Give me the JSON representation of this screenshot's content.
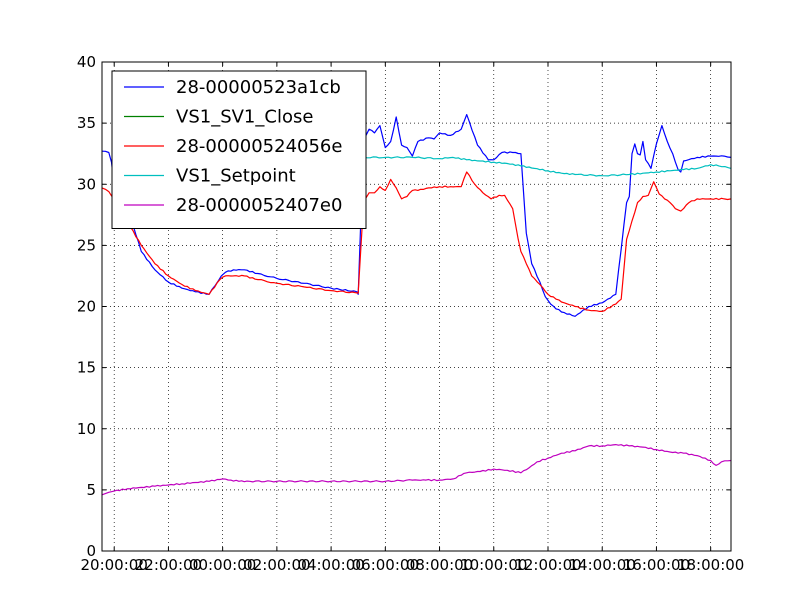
{
  "chart_data": {
    "type": "line",
    "title": "",
    "xlabel": "",
    "ylabel": "",
    "ylim": [
      0,
      40
    ],
    "y_ticks": [
      0,
      5,
      10,
      15,
      20,
      25,
      30,
      35,
      40
    ],
    "xlim": [
      19.55,
      42.75
    ],
    "x_ticks": [
      20,
      22,
      24,
      26,
      28,
      30,
      32,
      34,
      36,
      38,
      40,
      42
    ],
    "x_tick_labels": [
      "20:00:00",
      "22:00:00",
      "00:00:00",
      "02:00:00",
      "04:00:00",
      "06:00:00",
      "08:00:00",
      "10:00:00",
      "12:00:00",
      "14:00:00",
      "16:00:00",
      "18:00:00"
    ],
    "grid": true,
    "legend_position": "top-left",
    "series": [
      {
        "name": "28-00000523a1cb",
        "color": "#0000ff",
        "x": [
          19.55,
          19.8,
          19.9,
          20.0,
          20.5,
          21.0,
          21.5,
          22.0,
          22.5,
          23.0,
          23.5,
          23.95,
          24.1,
          24.4,
          24.8,
          25.3,
          26.0,
          27.0,
          28.0,
          28.95,
          29.0,
          29.2,
          29.4,
          29.6,
          29.8,
          30.0,
          30.2,
          30.4,
          30.6,
          30.8,
          31.0,
          31.2,
          31.6,
          31.8,
          32.0,
          32.4,
          32.8,
          33.0,
          33.4,
          33.8,
          34.0,
          34.3,
          34.7,
          35.0,
          35.2,
          35.4,
          35.7,
          35.9,
          36.0,
          36.1,
          36.3,
          36.6,
          37.0,
          37.5,
          38.0,
          38.5,
          38.9,
          39.0,
          39.1,
          39.2,
          39.3,
          39.4,
          39.5,
          39.6,
          39.8,
          40.0,
          40.2,
          40.4,
          40.6,
          40.8,
          40.9,
          41.0,
          41.5,
          42.0,
          42.5,
          42.75
        ],
        "values": [
          32.7,
          32.6,
          31.8,
          29.8,
          28.0,
          24.5,
          23.0,
          22.0,
          21.5,
          21.2,
          21.0,
          22.5,
          22.8,
          23.0,
          23.0,
          22.7,
          22.3,
          21.9,
          21.5,
          21.2,
          21.0,
          33.5,
          34.5,
          34.2,
          34.8,
          33.0,
          33.5,
          35.5,
          33.2,
          33.0,
          32.3,
          33.5,
          33.8,
          33.7,
          34.2,
          34.0,
          34.5,
          35.7,
          33.2,
          32.0,
          32.0,
          32.6,
          32.6,
          32.5,
          26.0,
          23.5,
          22.0,
          20.8,
          20.5,
          20.2,
          19.8,
          19.5,
          19.2,
          20.0,
          20.3,
          21.0,
          28.5,
          29.0,
          32.5,
          33.3,
          32.5,
          32.4,
          33.5,
          32.0,
          31.3,
          33.3,
          34.8,
          33.5,
          32.5,
          31.2,
          31.0,
          31.9,
          32.2,
          32.3,
          32.3,
          32.2
        ]
      },
      {
        "name": "VS1_SV1_Close",
        "color": "#008000",
        "x": [],
        "values": []
      },
      {
        "name": "28-00000524056e",
        "color": "#ff0000",
        "x": [
          19.55,
          19.8,
          20.0,
          20.3,
          20.6,
          21.0,
          21.5,
          22.0,
          22.5,
          23.0,
          23.5,
          23.9,
          24.1,
          24.4,
          24.8,
          25.3,
          26.0,
          27.0,
          28.0,
          29.0,
          29.2,
          29.4,
          29.6,
          29.8,
          30.0,
          30.2,
          30.4,
          30.6,
          30.8,
          31.0,
          31.2,
          31.6,
          32.0,
          32.4,
          32.8,
          33.0,
          33.3,
          33.6,
          33.9,
          34.2,
          34.4,
          34.7,
          34.9,
          35.0,
          35.2,
          35.4,
          35.7,
          36.0,
          36.3,
          36.6,
          37.0,
          37.5,
          38.0,
          38.5,
          38.7,
          38.9,
          39.1,
          39.3,
          39.5,
          39.7,
          39.9,
          40.1,
          40.3,
          40.5,
          40.7,
          40.9,
          41.2,
          41.5,
          42.0,
          42.5,
          42.75
        ],
        "values": [
          29.7,
          29.4,
          28.8,
          27.8,
          26.5,
          25.0,
          23.5,
          22.5,
          21.8,
          21.3,
          21.0,
          22.2,
          22.5,
          22.5,
          22.5,
          22.2,
          21.9,
          21.6,
          21.3,
          21.1,
          28.5,
          29.3,
          29.3,
          29.8,
          29.5,
          30.4,
          29.7,
          28.8,
          29.0,
          29.5,
          29.5,
          29.7,
          29.8,
          29.8,
          29.8,
          31.0,
          30.0,
          29.3,
          28.8,
          29.1,
          29.1,
          28.0,
          25.5,
          24.5,
          23.5,
          22.5,
          21.8,
          21.0,
          20.6,
          20.3,
          20.0,
          19.7,
          19.6,
          20.2,
          20.6,
          25.5,
          27.0,
          28.5,
          29.0,
          29.1,
          30.2,
          29.2,
          28.8,
          28.5,
          28.0,
          27.8,
          28.5,
          28.8,
          28.8,
          28.8,
          28.8
        ]
      },
      {
        "name": "VS1_Setpoint",
        "color": "#00bfbf",
        "x": [
          29.1,
          30.0,
          31.0,
          32.0,
          32.5,
          33.0,
          33.5,
          34.0,
          34.5,
          35.0,
          35.5,
          36.0,
          36.5,
          37.0,
          38.0,
          39.0,
          39.5,
          40.0,
          40.5,
          41.0,
          41.5,
          42.0,
          42.3,
          42.75
        ],
        "values": [
          32.2,
          32.2,
          32.2,
          32.1,
          32.2,
          32.0,
          31.9,
          31.8,
          31.7,
          31.5,
          31.3,
          31.1,
          30.9,
          30.8,
          30.7,
          30.8,
          30.9,
          31.0,
          31.1,
          31.2,
          31.3,
          31.6,
          31.5,
          31.3
        ]
      },
      {
        "name": "28-0000052407e0",
        "color": "#bf00bf",
        "x": [
          19.55,
          19.8,
          20.0,
          20.5,
          21.0,
          21.5,
          22.0,
          22.5,
          23.0,
          23.5,
          24.0,
          24.3,
          24.6,
          25.0,
          26.0,
          27.0,
          28.0,
          29.0,
          30.0,
          31.0,
          31.5,
          32.0,
          32.5,
          32.8,
          33.0,
          33.5,
          34.0,
          34.5,
          35.0,
          35.3,
          35.6,
          36.0,
          36.5,
          37.0,
          37.5,
          38.0,
          38.5,
          39.0,
          39.5,
          40.0,
          40.5,
          41.0,
          41.5,
          42.0,
          42.2,
          42.4,
          42.75
        ],
        "values": [
          4.6,
          4.8,
          4.9,
          5.1,
          5.2,
          5.3,
          5.4,
          5.5,
          5.6,
          5.7,
          5.9,
          5.8,
          5.7,
          5.7,
          5.7,
          5.7,
          5.7,
          5.7,
          5.7,
          5.8,
          5.8,
          5.8,
          5.9,
          6.2,
          6.4,
          6.5,
          6.7,
          6.6,
          6.4,
          6.8,
          7.3,
          7.6,
          8.0,
          8.2,
          8.6,
          8.6,
          8.7,
          8.6,
          8.5,
          8.3,
          8.1,
          8.0,
          7.8,
          7.4,
          7.0,
          7.3,
          7.4
        ]
      }
    ]
  }
}
